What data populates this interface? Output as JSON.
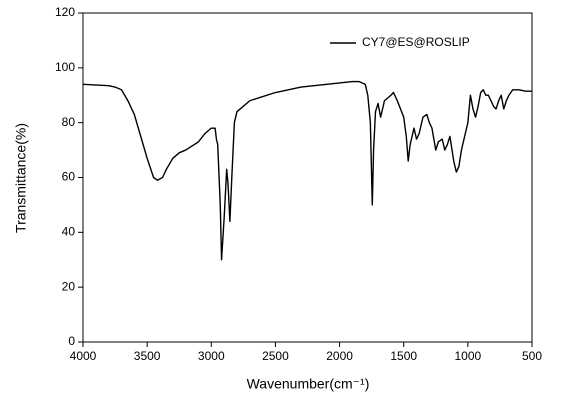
{
  "chart_data": {
    "type": "line",
    "x_label": "Wavenumber(cm⁻¹)",
    "y_label": "Transmittance(%)",
    "xlim": [
      4000,
      500
    ],
    "xticks": [
      4000,
      3500,
      3000,
      2500,
      2000,
      1500,
      1000,
      500
    ],
    "ylim": [
      0,
      120
    ],
    "yticks": [
      0,
      20,
      40,
      60,
      80,
      100,
      120
    ],
    "legend": "upper right",
    "series": [
      {
        "name": "CY7@ES@ROSLIP",
        "color": "#000000",
        "x": [
          4000,
          3800,
          3750,
          3700,
          3650,
          3600,
          3550,
          3500,
          3450,
          3420,
          3380,
          3350,
          3300,
          3250,
          3200,
          3100,
          3050,
          3000,
          2970,
          2960,
          2950,
          2930,
          2920,
          2900,
          2880,
          2870,
          2855,
          2840,
          2820,
          2800,
          2700,
          2500,
          2300,
          2100,
          2000,
          1900,
          1850,
          1800,
          1780,
          1760,
          1745,
          1735,
          1720,
          1700,
          1680,
          1650,
          1600,
          1580,
          1550,
          1500,
          1480,
          1465,
          1450,
          1420,
          1400,
          1380,
          1350,
          1320,
          1300,
          1280,
          1250,
          1230,
          1200,
          1180,
          1160,
          1140,
          1110,
          1090,
          1070,
          1050,
          1000,
          980,
          960,
          940,
          920,
          900,
          880,
          860,
          840,
          820,
          800,
          780,
          760,
          740,
          720,
          700,
          680,
          650,
          600,
          550,
          500
        ],
        "values": [
          94,
          93.5,
          93,
          92,
          88,
          83,
          75,
          67,
          60,
          59,
          60,
          63,
          67,
          69,
          70,
          73,
          76,
          78,
          78,
          74,
          72,
          50,
          30,
          45,
          63,
          58,
          44,
          60,
          80,
          84,
          88,
          91,
          93,
          94,
          94.5,
          95,
          95,
          94,
          90,
          80,
          50,
          70,
          84,
          87,
          82,
          88,
          90,
          91,
          88,
          82,
          75,
          66,
          72,
          78,
          74,
          76,
          82,
          83,
          80,
          78,
          70,
          73,
          74,
          70,
          72,
          75,
          66,
          62,
          64,
          70,
          80,
          90,
          85,
          82,
          86,
          91,
          92,
          90,
          90,
          88,
          86,
          85,
          88,
          90,
          85,
          88,
          90,
          92,
          92,
          91.5,
          91.5
        ]
      }
    ]
  }
}
